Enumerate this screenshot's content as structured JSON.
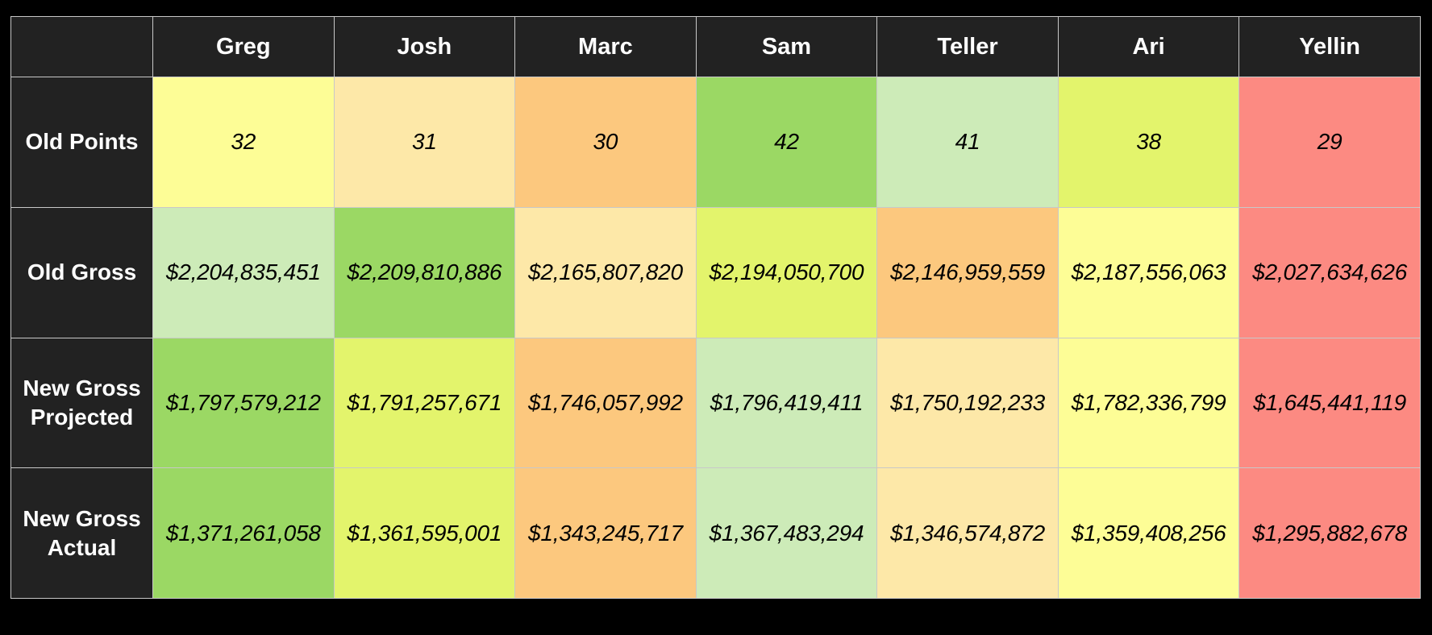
{
  "chart_data": {
    "type": "table",
    "columns": [
      "Greg",
      "Josh",
      "Marc",
      "Sam",
      "Teller",
      "Ari",
      "Yellin"
    ],
    "rows": [
      {
        "label_lines": [
          "Old Points"
        ],
        "values": [
          "32",
          "31",
          "30",
          "42",
          "41",
          "38",
          "29"
        ],
        "colors": [
          "#fdfd96",
          "#fde8a8",
          "#fcc87e",
          "#9bd864",
          "#cdebb8",
          "#e3f46c",
          "#fc8a82"
        ]
      },
      {
        "label_lines": [
          "Old Gross"
        ],
        "values": [
          "$2,204,835,451",
          "$2,209,810,886",
          "$2,165,807,820",
          "$2,194,050,700",
          "$2,146,959,559",
          "$2,187,556,063",
          "$2,027,634,626"
        ],
        "colors": [
          "#cdebb8",
          "#9bd864",
          "#fde8a8",
          "#e3f46c",
          "#fcc87e",
          "#fdfd96",
          "#fc8a82"
        ]
      },
      {
        "label_lines": [
          "New Gross",
          "Projected"
        ],
        "values": [
          "$1,797,579,212",
          "$1,791,257,671",
          "$1,746,057,992",
          "$1,796,419,411",
          "$1,750,192,233",
          "$1,782,336,799",
          "$1,645,441,119"
        ],
        "colors": [
          "#9bd864",
          "#e3f46c",
          "#fcc87e",
          "#cdebb8",
          "#fde8a8",
          "#fdfd96",
          "#fc8a82"
        ]
      },
      {
        "label_lines": [
          "New Gross",
          "Actual"
        ],
        "values": [
          "$1,371,261,058",
          "$1,361,595,001",
          "$1,343,245,717",
          "$1,367,483,294",
          "$1,346,574,872",
          "$1,359,408,256",
          "$1,295,882,678"
        ],
        "colors": [
          "#9bd864",
          "#e3f46c",
          "#fcc87e",
          "#cdebb8",
          "#fde8a8",
          "#fdfd96",
          "#fc8a82"
        ]
      }
    ]
  },
  "style": {
    "header_bg": "#222222",
    "header_text": "#ffffff",
    "page_bg": "#000000"
  }
}
